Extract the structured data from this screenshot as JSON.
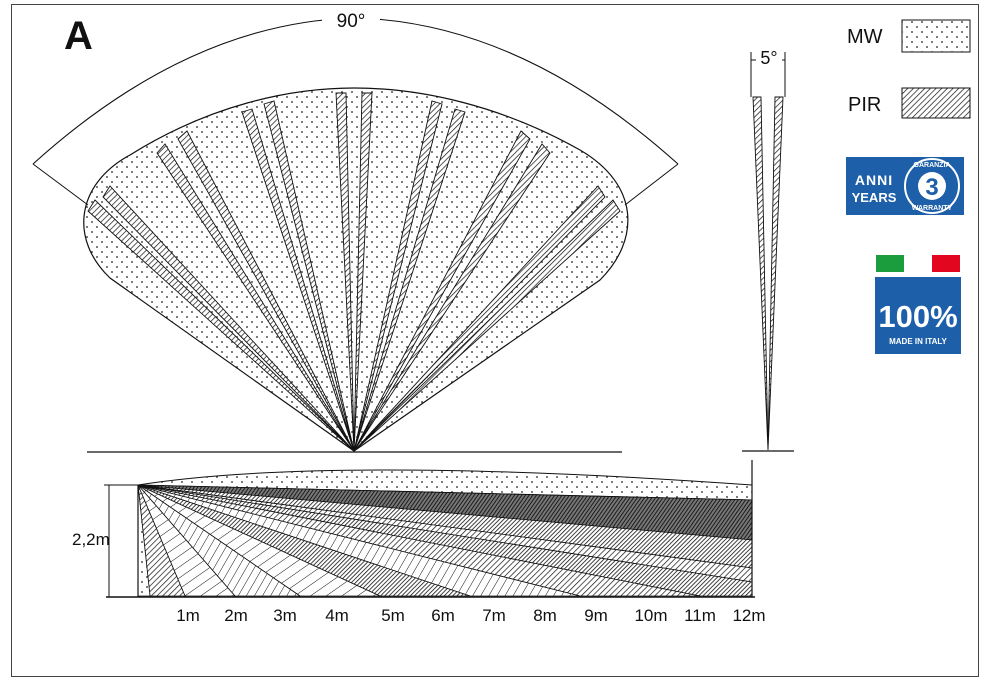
{
  "panel_label": "A",
  "top_view": {
    "angle_label": "90°"
  },
  "side_beam": {
    "angle_label": "5°"
  },
  "legend": {
    "mw_label": "MW",
    "pir_label": "PIR"
  },
  "warranty_badge": {
    "anni": "ANNI",
    "years": "YEARS",
    "number": "3",
    "garanzia": "GARANZIA",
    "warranty": "WARRANTY"
  },
  "made_in_italy": {
    "percent": "100%",
    "text": "MADE IN ITALY",
    "flag_colors": {
      "green": "#1b9c3d",
      "red": "#e3061f"
    }
  },
  "side_view": {
    "height_label": "2,2m",
    "distance_labels": [
      "1m",
      "2m",
      "3m",
      "4m",
      "5m",
      "6m",
      "7m",
      "8m",
      "9m",
      "10m",
      "11m",
      "12m"
    ]
  },
  "colors": {
    "badge_blue": "#1d5fa8",
    "line": "#111111"
  }
}
